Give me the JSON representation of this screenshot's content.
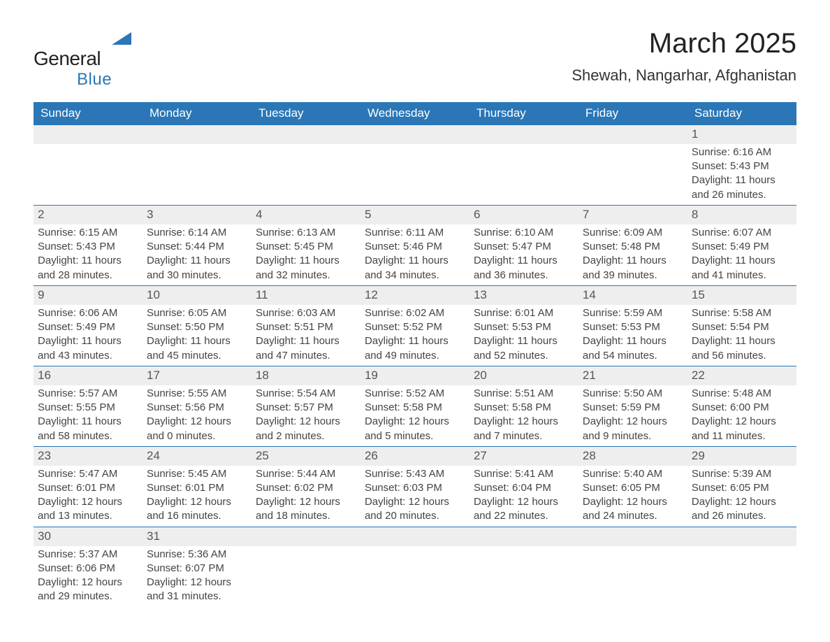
{
  "logo": {
    "line1": "General",
    "line2": "Blue",
    "triangle_color": "#2a76b6"
  },
  "title": "March 2025",
  "location": "Shewah, Nangarhar, Afghanistan",
  "colors": {
    "header_bg": "#2a76b6",
    "header_text": "#ffffff",
    "daynum_bg": "#eeeeee",
    "body_text": "#444444",
    "border": "#2a76b6",
    "page_bg": "#ffffff"
  },
  "typography": {
    "title_fontsize": 40,
    "location_fontsize": 22,
    "header_fontsize": 17,
    "cell_fontsize": 15,
    "daynum_fontsize": 17
  },
  "calendar": {
    "type": "table",
    "columns": [
      "Sunday",
      "Monday",
      "Tuesday",
      "Wednesday",
      "Thursday",
      "Friday",
      "Saturday"
    ],
    "leading_blanks": 6,
    "days": [
      {
        "n": 1,
        "sunrise": "6:16 AM",
        "sunset": "5:43 PM",
        "dl_h": 11,
        "dl_m": 26
      },
      {
        "n": 2,
        "sunrise": "6:15 AM",
        "sunset": "5:43 PM",
        "dl_h": 11,
        "dl_m": 28
      },
      {
        "n": 3,
        "sunrise": "6:14 AM",
        "sunset": "5:44 PM",
        "dl_h": 11,
        "dl_m": 30
      },
      {
        "n": 4,
        "sunrise": "6:13 AM",
        "sunset": "5:45 PM",
        "dl_h": 11,
        "dl_m": 32
      },
      {
        "n": 5,
        "sunrise": "6:11 AM",
        "sunset": "5:46 PM",
        "dl_h": 11,
        "dl_m": 34
      },
      {
        "n": 6,
        "sunrise": "6:10 AM",
        "sunset": "5:47 PM",
        "dl_h": 11,
        "dl_m": 36
      },
      {
        "n": 7,
        "sunrise": "6:09 AM",
        "sunset": "5:48 PM",
        "dl_h": 11,
        "dl_m": 39
      },
      {
        "n": 8,
        "sunrise": "6:07 AM",
        "sunset": "5:49 PM",
        "dl_h": 11,
        "dl_m": 41
      },
      {
        "n": 9,
        "sunrise": "6:06 AM",
        "sunset": "5:49 PM",
        "dl_h": 11,
        "dl_m": 43
      },
      {
        "n": 10,
        "sunrise": "6:05 AM",
        "sunset": "5:50 PM",
        "dl_h": 11,
        "dl_m": 45
      },
      {
        "n": 11,
        "sunrise": "6:03 AM",
        "sunset": "5:51 PM",
        "dl_h": 11,
        "dl_m": 47
      },
      {
        "n": 12,
        "sunrise": "6:02 AM",
        "sunset": "5:52 PM",
        "dl_h": 11,
        "dl_m": 49
      },
      {
        "n": 13,
        "sunrise": "6:01 AM",
        "sunset": "5:53 PM",
        "dl_h": 11,
        "dl_m": 52
      },
      {
        "n": 14,
        "sunrise": "5:59 AM",
        "sunset": "5:53 PM",
        "dl_h": 11,
        "dl_m": 54
      },
      {
        "n": 15,
        "sunrise": "5:58 AM",
        "sunset": "5:54 PM",
        "dl_h": 11,
        "dl_m": 56
      },
      {
        "n": 16,
        "sunrise": "5:57 AM",
        "sunset": "5:55 PM",
        "dl_h": 11,
        "dl_m": 58
      },
      {
        "n": 17,
        "sunrise": "5:55 AM",
        "sunset": "5:56 PM",
        "dl_h": 12,
        "dl_m": 0
      },
      {
        "n": 18,
        "sunrise": "5:54 AM",
        "sunset": "5:57 PM",
        "dl_h": 12,
        "dl_m": 2
      },
      {
        "n": 19,
        "sunrise": "5:52 AM",
        "sunset": "5:58 PM",
        "dl_h": 12,
        "dl_m": 5
      },
      {
        "n": 20,
        "sunrise": "5:51 AM",
        "sunset": "5:58 PM",
        "dl_h": 12,
        "dl_m": 7
      },
      {
        "n": 21,
        "sunrise": "5:50 AM",
        "sunset": "5:59 PM",
        "dl_h": 12,
        "dl_m": 9
      },
      {
        "n": 22,
        "sunrise": "5:48 AM",
        "sunset": "6:00 PM",
        "dl_h": 12,
        "dl_m": 11
      },
      {
        "n": 23,
        "sunrise": "5:47 AM",
        "sunset": "6:01 PM",
        "dl_h": 12,
        "dl_m": 13
      },
      {
        "n": 24,
        "sunrise": "5:45 AM",
        "sunset": "6:01 PM",
        "dl_h": 12,
        "dl_m": 16
      },
      {
        "n": 25,
        "sunrise": "5:44 AM",
        "sunset": "6:02 PM",
        "dl_h": 12,
        "dl_m": 18
      },
      {
        "n": 26,
        "sunrise": "5:43 AM",
        "sunset": "6:03 PM",
        "dl_h": 12,
        "dl_m": 20
      },
      {
        "n": 27,
        "sunrise": "5:41 AM",
        "sunset": "6:04 PM",
        "dl_h": 12,
        "dl_m": 22
      },
      {
        "n": 28,
        "sunrise": "5:40 AM",
        "sunset": "6:05 PM",
        "dl_h": 12,
        "dl_m": 24
      },
      {
        "n": 29,
        "sunrise": "5:39 AM",
        "sunset": "6:05 PM",
        "dl_h": 12,
        "dl_m": 26
      },
      {
        "n": 30,
        "sunrise": "5:37 AM",
        "sunset": "6:06 PM",
        "dl_h": 12,
        "dl_m": 29
      },
      {
        "n": 31,
        "sunrise": "5:36 AM",
        "sunset": "6:07 PM",
        "dl_h": 12,
        "dl_m": 31
      }
    ],
    "labels": {
      "sunrise": "Sunrise:",
      "sunset": "Sunset:",
      "daylight": "Daylight:",
      "hours": "hours",
      "and": "and",
      "minutes": "minutes."
    }
  }
}
